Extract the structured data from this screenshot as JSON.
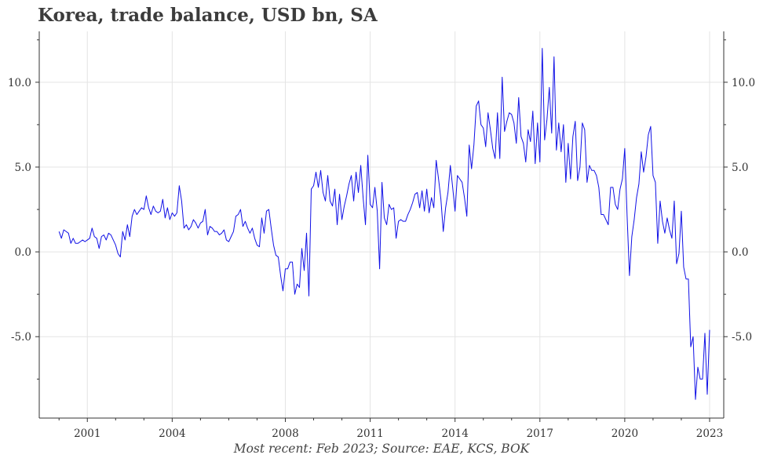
{
  "title": "Korea, trade balance, USD bn, SA",
  "footnote": "Most recent: Feb 2023; Source: EAE, KCS, BOK",
  "colors": {
    "line": "#1010e6",
    "grid": "#e4e4e4",
    "axis": "#333333",
    "title": "#3c3c3c"
  },
  "chart_data": {
    "type": "line",
    "title": "Korea, trade balance, USD bn, SA",
    "xlabel": "",
    "ylabel": "",
    "xlim": [
      1999.3,
      2023.5
    ],
    "ylim": [
      -9.8,
      13.0
    ],
    "x_ticks": [
      2001,
      2004,
      2008,
      2011,
      2014,
      2017,
      2020,
      2023
    ],
    "y_ticks": [
      10.0,
      5.0,
      0.0,
      -5.0
    ],
    "y_tick_labels": [
      "10.0",
      "5.0",
      "0.0",
      "-5.0"
    ],
    "x_tick_labels": [
      "2001",
      "2004",
      "2008",
      "2011",
      "2014",
      "2017",
      "2020",
      "2023"
    ],
    "y_axis_sides": [
      "left",
      "right"
    ],
    "grid": true,
    "legend": "none",
    "series": [
      {
        "start": 2000.0,
        "step_months": 1,
        "values": [
          1.2,
          0.8,
          1.3,
          1.2,
          1.1,
          0.5,
          0.8,
          0.5,
          0.5,
          0.6,
          0.7,
          0.6,
          0.7,
          0.8,
          1.4,
          0.9,
          0.8,
          0.2,
          0.9,
          1.0,
          0.7,
          1.1,
          1.0,
          0.7,
          0.4,
          -0.1,
          -0.3,
          1.2,
          0.7,
          1.6,
          0.9,
          2.1,
          2.5,
          2.2,
          2.4,
          2.6,
          2.5,
          3.3,
          2.6,
          2.2,
          2.7,
          2.4,
          2.3,
          2.4,
          3.1,
          2.0,
          2.6,
          1.9,
          2.3,
          2.1,
          2.3,
          3.9,
          3.0,
          1.4,
          1.6,
          1.3,
          1.5,
          1.9,
          1.7,
          1.4,
          1.7,
          1.8,
          2.5,
          1.0,
          1.5,
          1.4,
          1.2,
          1.2,
          1.0,
          1.1,
          1.3,
          0.7,
          0.6,
          0.9,
          1.2,
          2.1,
          2.2,
          2.5,
          1.5,
          1.8,
          1.4,
          1.1,
          1.4,
          0.8,
          0.4,
          0.3,
          2.0,
          1.1,
          2.4,
          2.5,
          1.4,
          0.4,
          -0.2,
          -0.3,
          -1.4,
          -2.3,
          -1.0,
          -1.0,
          -0.6,
          -0.6,
          -2.5,
          -1.9,
          -2.1,
          0.2,
          -1.1,
          1.1,
          -2.6,
          3.7,
          3.9,
          4.7,
          3.8,
          4.8,
          3.5,
          3.0,
          4.5,
          3.0,
          2.7,
          3.7,
          1.6,
          3.4,
          1.9,
          2.7,
          3.3,
          4.0,
          4.5,
          3.0,
          4.7,
          3.5,
          5.1,
          3.2,
          1.6,
          5.7,
          2.8,
          2.6,
          3.8,
          2.4,
          -1.0,
          4.1,
          2.0,
          1.6,
          2.8,
          2.5,
          2.6,
          0.8,
          1.8,
          1.9,
          1.8,
          1.8,
          2.2,
          2.5,
          2.9,
          3.4,
          3.5,
          2.6,
          3.6,
          2.4,
          3.7,
          2.3,
          3.2,
          2.6,
          5.4,
          4.3,
          3.1,
          1.2,
          2.6,
          3.5,
          5.1,
          3.8,
          2.4,
          4.5,
          4.3,
          4.1,
          3.2,
          2.1,
          6.3,
          4.9,
          6.3,
          8.6,
          8.9,
          7.5,
          7.3,
          6.2,
          8.2,
          7.2,
          6.1,
          5.5,
          8.2,
          5.5,
          10.3,
          7.1,
          7.7,
          8.2,
          8.1,
          7.6,
          6.4,
          9.1,
          6.8,
          6.4,
          5.3,
          7.2,
          6.5,
          8.3,
          5.2,
          7.6,
          5.3,
          12.0,
          6.6,
          7.8,
          9.7,
          7.0,
          11.5,
          6.0,
          7.6,
          5.9,
          7.5,
          4.1,
          6.4,
          4.3,
          6.8,
          7.7,
          4.2,
          5.0,
          7.6,
          7.2,
          4.1,
          5.1,
          4.8,
          4.8,
          4.5,
          3.8,
          2.2,
          2.2,
          1.9,
          1.6,
          3.8,
          3.8,
          2.8,
          2.5,
          3.7,
          4.3,
          6.1,
          2.1,
          -1.4,
          0.9,
          1.9,
          3.2,
          4.0,
          5.9,
          4.7,
          5.6,
          6.9,
          7.4,
          4.5,
          4.1,
          0.5,
          3.0,
          1.8,
          1.1,
          2.0,
          1.3,
          0.8,
          3.0,
          -0.7,
          -0.1,
          2.4,
          -0.9,
          -1.6,
          -1.6,
          -5.6,
          -5.0,
          -8.7,
          -6.8,
          -7.5,
          -7.5,
          -4.8,
          -8.4,
          -4.6
        ]
      }
    ]
  }
}
